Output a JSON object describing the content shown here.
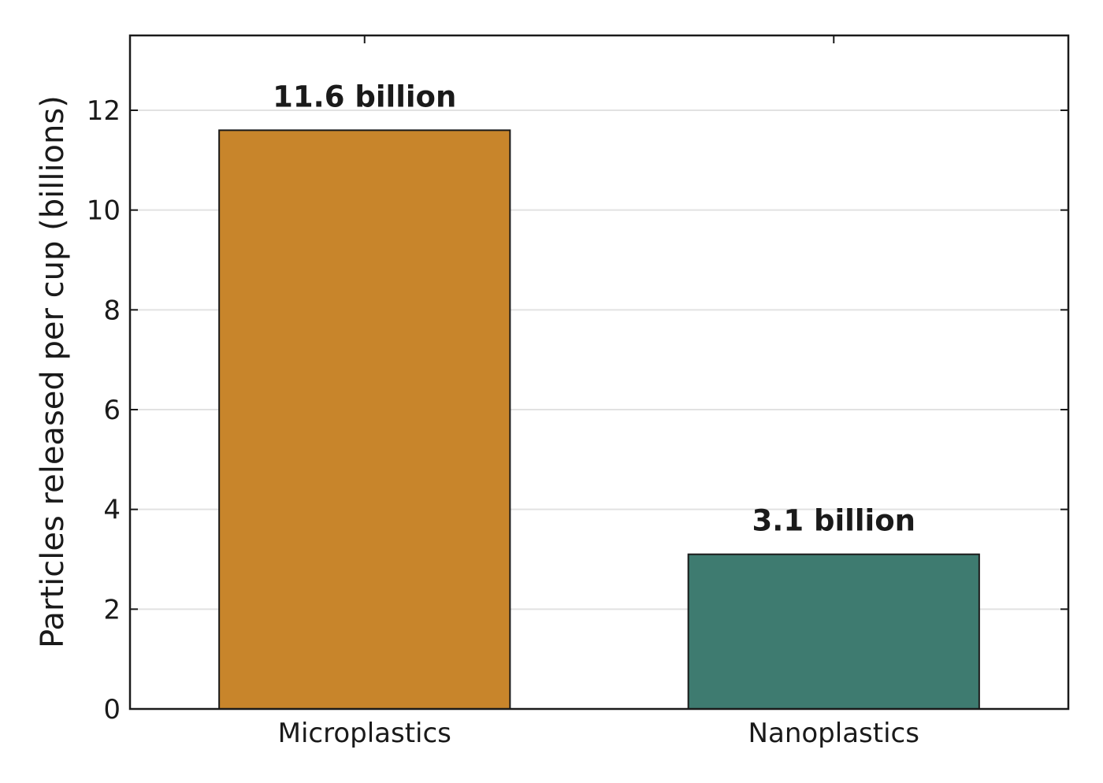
{
  "chart_data": {
    "type": "bar",
    "categories": [
      "Microplastics",
      "Nanoplastics"
    ],
    "values": [
      11.6,
      3.1
    ],
    "data_labels": [
      "11.6 billion",
      "3.1 billion"
    ],
    "colors": [
      "#c8852b",
      "#3e7b70"
    ],
    "title": "",
    "xlabel": "",
    "ylabel": "Particles released per cup (billions)",
    "ylim": [
      0,
      13.5
    ],
    "yticks": [
      0,
      2,
      4,
      6,
      8,
      10,
      12
    ],
    "ytick_labels": [
      "0",
      "2",
      "4",
      "6",
      "8",
      "10",
      "12"
    ],
    "grid": "horizontal",
    "legend": "none"
  }
}
